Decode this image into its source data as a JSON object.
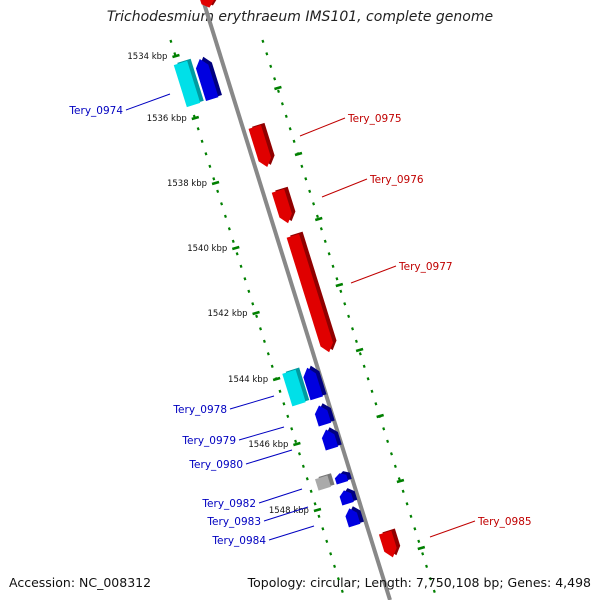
{
  "title": "Trichodesmium erythraeum IMS101, complete genome",
  "footer": {
    "accession": "Accession: NC_008312",
    "summary": "Topology: circular; Length: 7,750,108 bp; Genes: 4,498"
  },
  "colors": {
    "forward": "#e00000",
    "reverse": "#0000e0",
    "cyan": "#00e0e8",
    "gray": "#aaaaaa",
    "backbone": "#888888",
    "ruler": "#008000",
    "forward_label": "#c00000",
    "reverse_label": "#0000c0"
  },
  "ruler_labels": [
    "1534 kbp",
    "1536 kbp",
    "1538 kbp",
    "1540 kbp",
    "1542 kbp",
    "1544 kbp",
    "1546 kbp",
    "1548 kbp"
  ],
  "forward_genes": [
    "Tery_0975",
    "Tery_0976",
    "Tery_0977",
    "Tery_0985"
  ],
  "reverse_genes": [
    "Tery_0974",
    "Tery_0978",
    "Tery_0979",
    "Tery_0980",
    "Tery_0982",
    "Tery_0983",
    "Tery_0984"
  ]
}
